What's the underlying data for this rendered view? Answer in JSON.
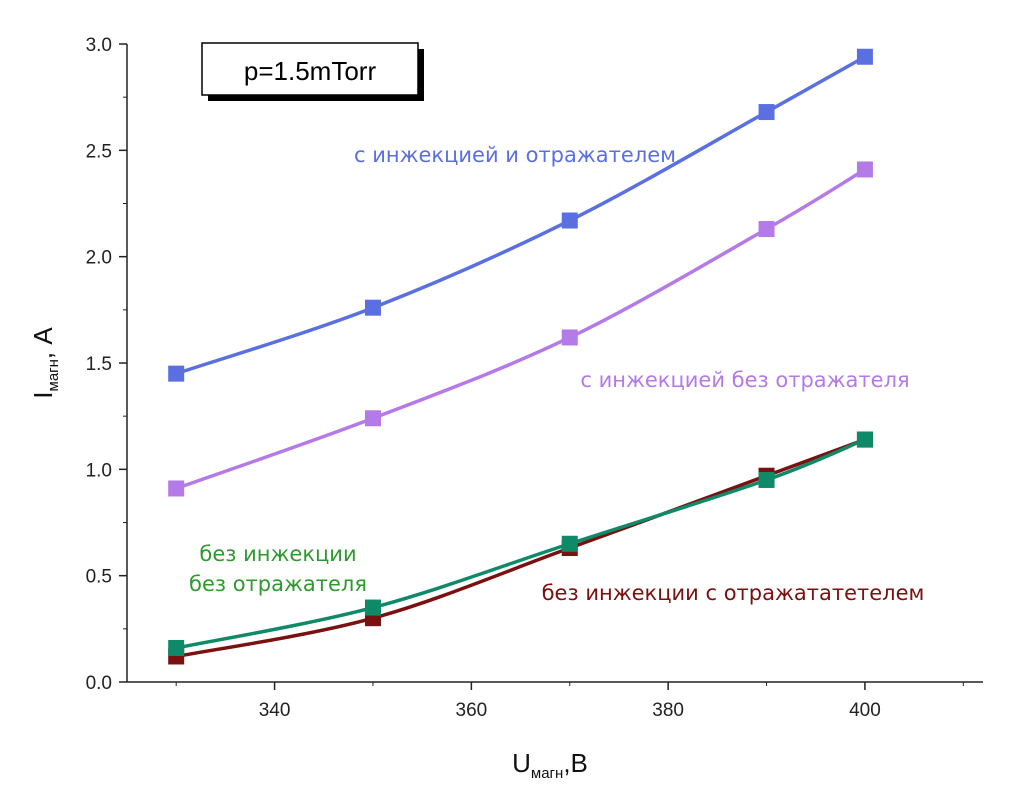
{
  "chart_data": {
    "type": "line",
    "annotation": "p=1.5mTorr",
    "xlabel": {
      "main": "U",
      "sub": "магн",
      "tail": ",B"
    },
    "ylabel": {
      "main": "I",
      "sub": "магн",
      "tail": ", A"
    },
    "xlim": [
      325,
      412
    ],
    "ylim": [
      0.0,
      3.0
    ],
    "xticks": [
      340,
      360,
      380,
      400
    ],
    "yticks": [
      0.0,
      0.5,
      1.0,
      1.5,
      2.0,
      2.5,
      3.0
    ],
    "x": [
      330,
      350,
      370,
      390,
      400
    ],
    "grid": false,
    "series": [
      {
        "name": "с инжекцией и отражателем",
        "color": "#5b70e0",
        "values": [
          1.45,
          1.76,
          2.17,
          2.68,
          2.94
        ]
      },
      {
        "name": "с инжекцией без отражателя",
        "color": "#b47ae8",
        "values": [
          0.91,
          1.24,
          1.62,
          2.13,
          2.41
        ]
      },
      {
        "name": "без инжекции с отражататетелем",
        "color": "#7a1010",
        "values": [
          0.12,
          0.3,
          0.63,
          0.97,
          1.14
        ]
      },
      {
        "name": "без инжекции\nбез отражателя",
        "color": "#0e8a68",
        "values": [
          0.16,
          0.35,
          0.65,
          0.95,
          1.14
        ]
      }
    ],
    "label_colors": [
      "#5b70e0",
      "#b47ae8",
      "#7a1010",
      "#2e9a2e"
    ]
  }
}
